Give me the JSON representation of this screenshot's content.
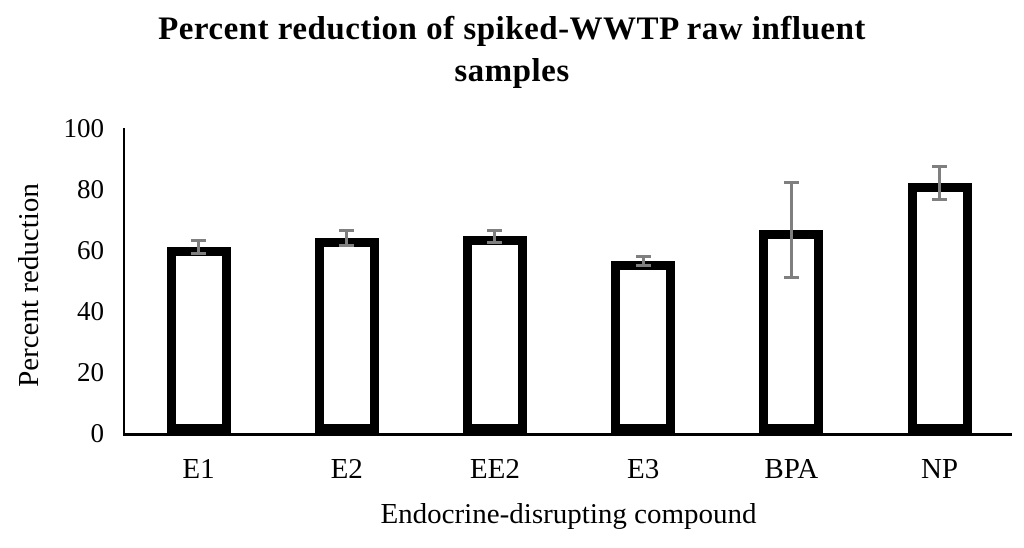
{
  "header": {
    "title_line1": "Percent reduction of spiked-WWTP raw influent",
    "title_line2": "samples"
  },
  "chart_data": {
    "type": "bar",
    "title": "Percent reduction of spiked-WWTP raw influent samples",
    "xlabel": "Endocrine-disrupting compound",
    "ylabel": "Percent reduction",
    "categories": [
      "E1",
      "E2",
      "EE2",
      "E3",
      "BPA",
      "NP"
    ],
    "values": [
      61,
      64,
      64.5,
      56.5,
      66.5,
      82
    ],
    "error_bars": [
      2.5,
      3,
      2.5,
      2,
      16,
      6
    ],
    "ylim": [
      0,
      100
    ],
    "yticks": [
      0,
      20,
      40,
      60,
      80,
      100
    ],
    "grid": false,
    "legend": false,
    "bar_fill_color": "#ffffff",
    "bar_border_color": "#000000",
    "error_bar_color": "#7f7f7f",
    "axis_color": "#000000",
    "text_color": "#000000"
  }
}
